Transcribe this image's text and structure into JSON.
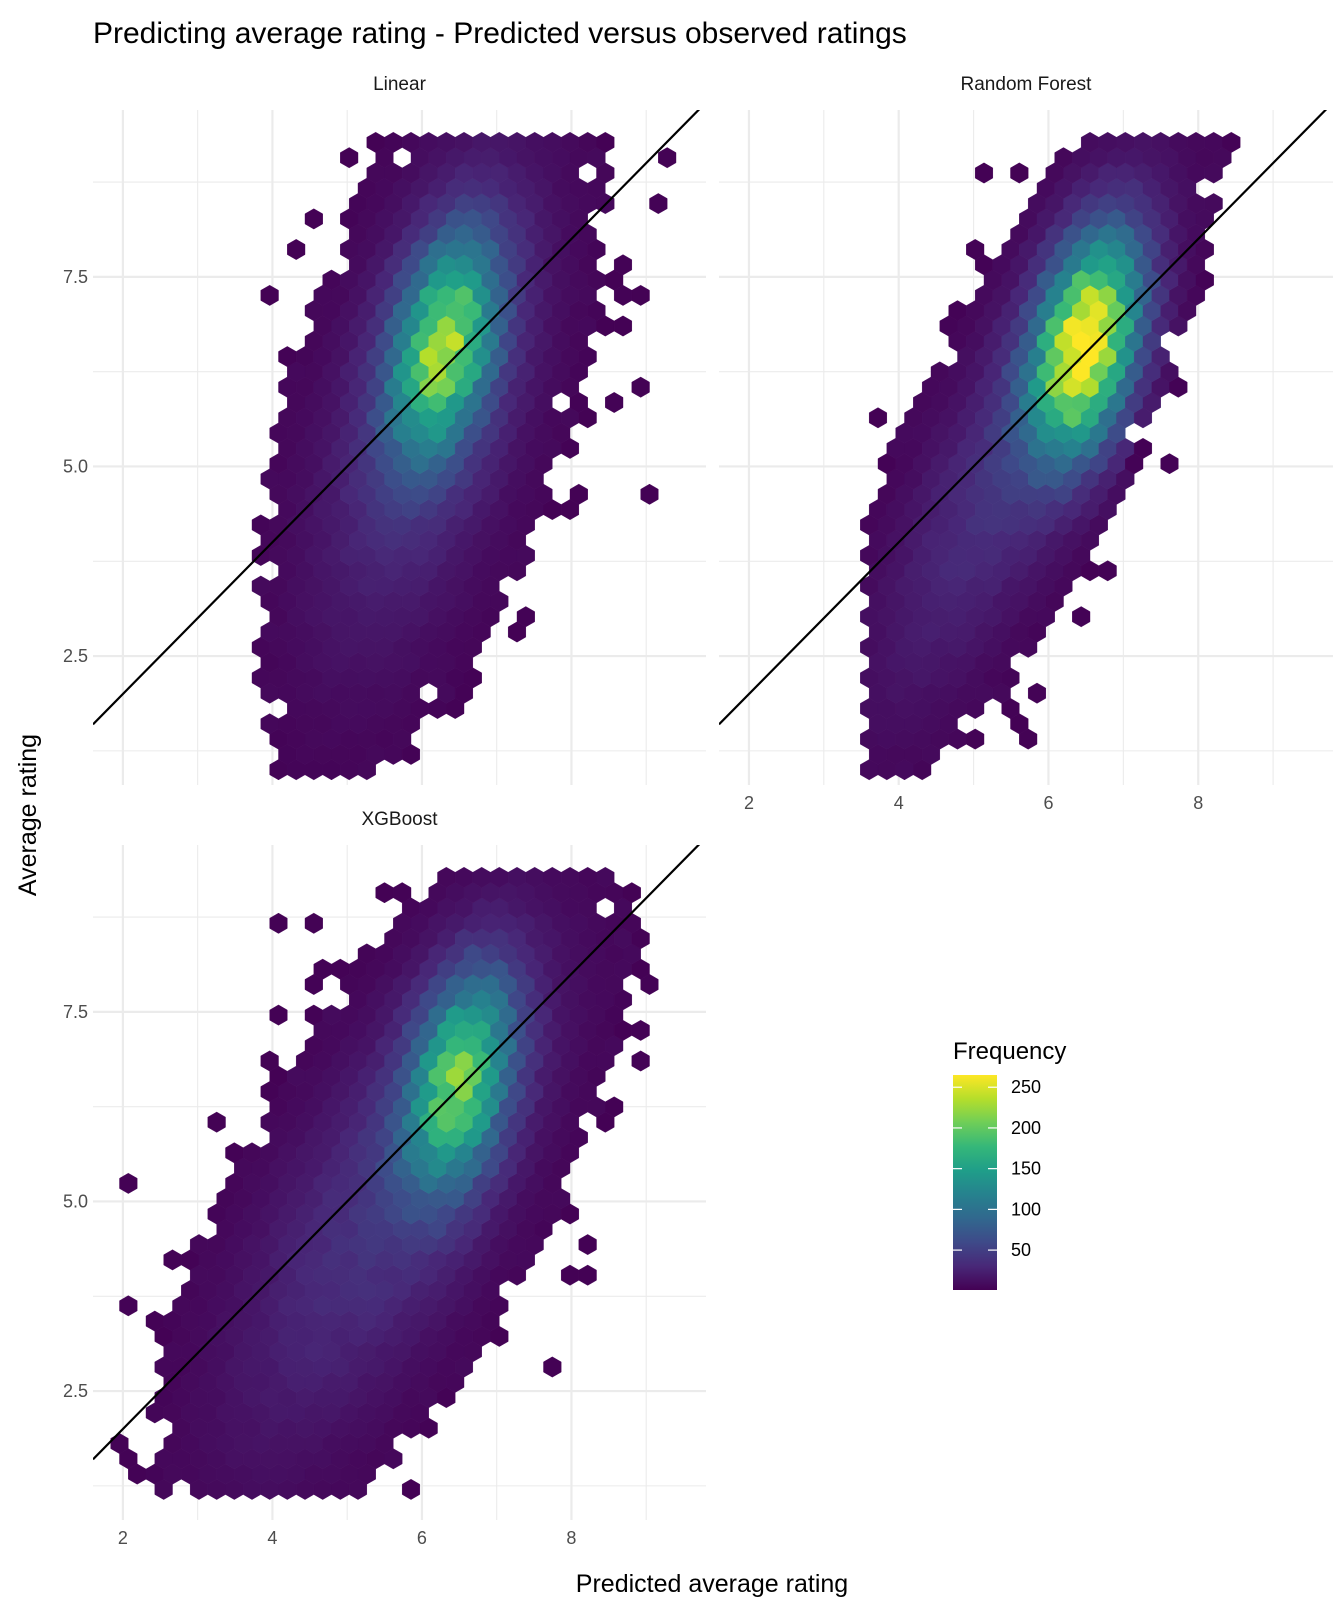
{
  "chart_data": {
    "type": "heatmap",
    "subtype": "hexbin",
    "title": "Predicting average rating - Predicted versus observed ratings",
    "xlabel": "Predicted average rating",
    "ylabel": "Average rating",
    "xlim": [
      1.6,
      9.8
    ],
    "ylim": [
      0.8,
      9.7
    ],
    "x_ticks": [
      2,
      4,
      6,
      8
    ],
    "x_tick_labels": [
      "2",
      "4",
      "6",
      "8"
    ],
    "y_ticks": [
      2.5,
      5.0,
      7.5
    ],
    "y_tick_labels": [
      "2.5",
      "5.0",
      "7.5"
    ],
    "reference_line": {
      "slope": 1,
      "intercept": 0,
      "color": "#000000"
    },
    "legend": {
      "title": "Frequency",
      "breaks": [
        50,
        100,
        150,
        200,
        250
      ],
      "labels": [
        "50",
        "100",
        "150",
        "200",
        "250"
      ],
      "range": [
        1,
        265
      ],
      "placement": "right"
    },
    "colormap": [
      "#440154",
      "#482878",
      "#3e4a89",
      "#31688e",
      "#26828e",
      "#1f9e89",
      "#35b779",
      "#6ece58",
      "#b5de2b",
      "#fde725"
    ],
    "panels": [
      {
        "name": "Linear",
        "center": [
          6.1,
          5.8
        ],
        "sd_x": 0.95,
        "sd_y": 2.0,
        "rho": 0.55,
        "peak": [
          6.3,
          6.6
        ],
        "peak_count": 205,
        "x_range": [
          3.8,
          9.4
        ],
        "y_range": [
          1.0,
          9.3
        ]
      },
      {
        "name": "Random Forest",
        "center": [
          5.6,
          5.3
        ],
        "sd_x": 1.1,
        "sd_y": 2.0,
        "rho": 0.8,
        "peak": [
          6.5,
          6.6
        ],
        "peak_count": 262,
        "x_range": [
          3.6,
          8.4
        ],
        "y_range": [
          1.0,
          9.3
        ]
      },
      {
        "name": "XGBoost",
        "center": [
          5.6,
          5.1
        ],
        "sd_x": 1.3,
        "sd_y": 2.0,
        "rho": 0.7,
        "peak": [
          6.5,
          6.6
        ],
        "peak_count": 190,
        "x_range": [
          2.0,
          9.1
        ],
        "y_range": [
          1.1,
          9.3
        ]
      }
    ]
  }
}
